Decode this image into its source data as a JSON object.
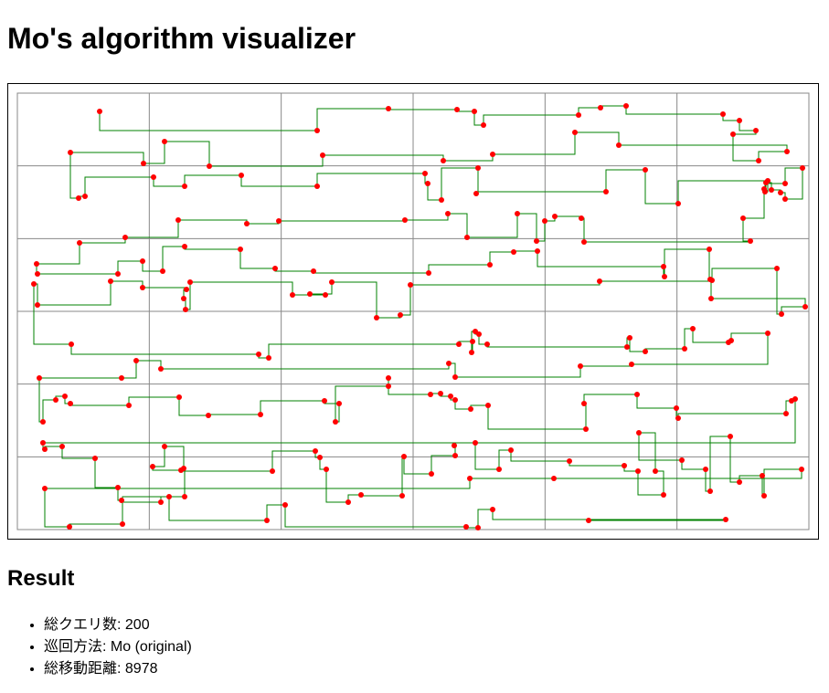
{
  "page": {
    "title": "Mo's algorithm visualizer"
  },
  "visualizer": {
    "grid": {
      "columns": 6,
      "rows": 6
    },
    "colors": {
      "grid": "#888888",
      "path": "#008000",
      "point": "#ff0000",
      "border": "#000000"
    }
  },
  "result": {
    "heading": "Result",
    "items": [
      {
        "label": "総クエリ数",
        "value": "200"
      },
      {
        "label": "巡回方法",
        "value": "Mo (original)"
      },
      {
        "label": "総移動距離",
        "value": "8978"
      }
    ]
  }
}
